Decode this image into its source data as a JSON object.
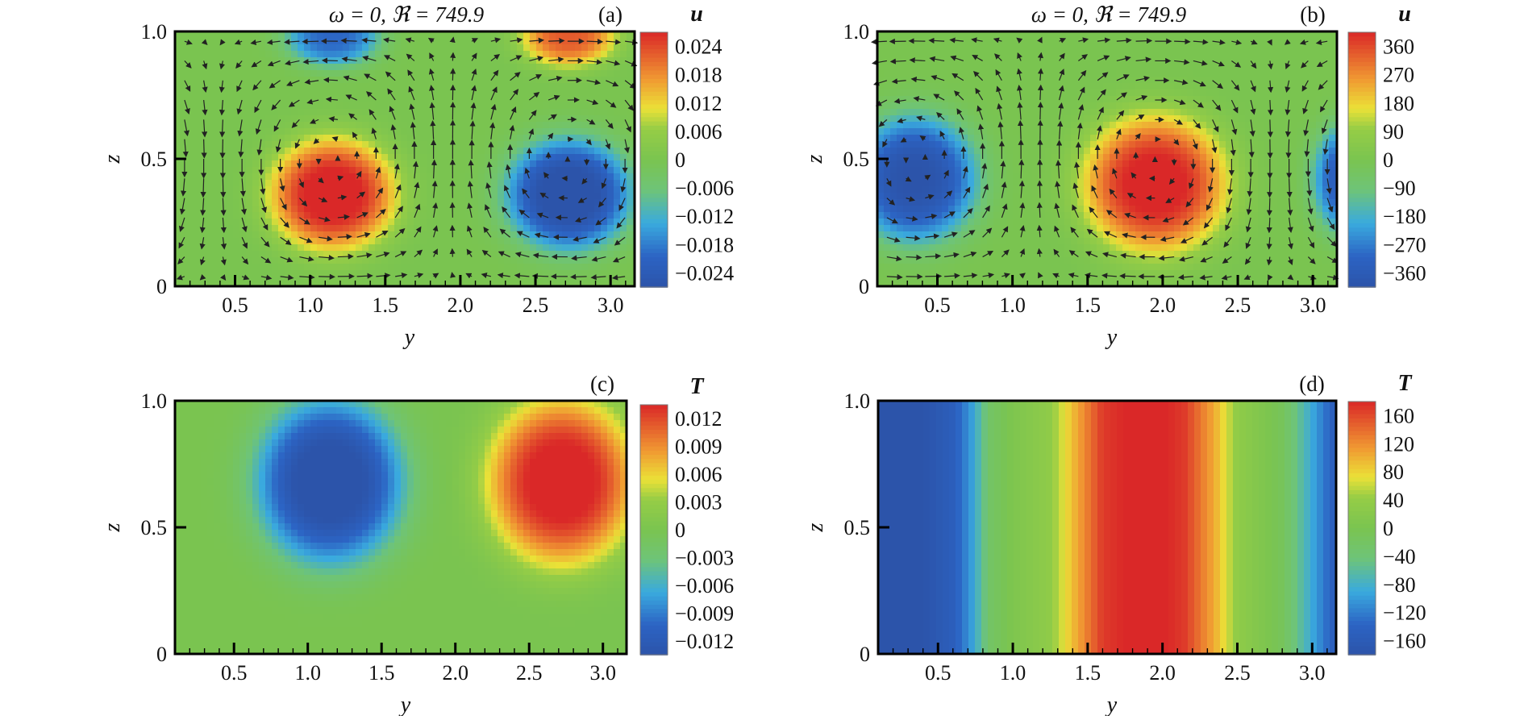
{
  "chart_data": [
    {
      "type": "heatmap",
      "panel": "(a)",
      "title": "ω = 0, ℜ = 749.9",
      "xlabel": "y",
      "ylabel": "z",
      "xlim": [
        0.1,
        3.16
      ],
      "ylim": [
        0,
        1
      ],
      "x_ticks": [
        "0.5",
        "1.0",
        "1.5",
        "2.0",
        "2.5",
        "3.0"
      ],
      "y_ticks": [
        "0",
        "0.5",
        "1.0"
      ],
      "colorbar_label": "u",
      "colorbar_ticks": [
        "0.024",
        "0.018",
        "0.012",
        "0.006",
        "0",
        "−0.006",
        "−0.012",
        "−0.018",
        "−0.024"
      ],
      "field_range": [
        -0.024,
        0.024
      ],
      "vectors": true,
      "features": [
        {
          "y": 1.15,
          "z": 0.36,
          "value": 0.026,
          "ry": 0.42,
          "rz": 0.22
        },
        {
          "y": 2.72,
          "z": 0.36,
          "value": -0.026,
          "ry": 0.42,
          "rz": 0.22
        },
        {
          "y": 1.15,
          "z": 0.98,
          "value": -0.018,
          "ry": 0.32,
          "rz": 0.12
        },
        {
          "y": 2.72,
          "z": 0.98,
          "value": 0.02,
          "ry": 0.32,
          "rz": 0.12
        }
      ]
    },
    {
      "type": "heatmap",
      "panel": "(b)",
      "title": "ω = 0, ℜ = 749.9",
      "xlabel": "y",
      "ylabel": "z",
      "xlim": [
        0.1,
        3.16
      ],
      "ylim": [
        0,
        1
      ],
      "x_ticks": [
        "0.5",
        "1.0",
        "1.5",
        "2.0",
        "2.5",
        "3.0"
      ],
      "y_ticks": [
        "0",
        "0.5",
        "1.0"
      ],
      "colorbar_label": "u",
      "colorbar_ticks": [
        "360",
        "270",
        "180",
        "90",
        "0",
        "−90",
        "−180",
        "−270",
        "−360"
      ],
      "field_range": [
        -360,
        360
      ],
      "vectors": true,
      "features": [
        {
          "y": 0.35,
          "z": 0.42,
          "value": -360,
          "ry": 0.42,
          "rz": 0.25
        },
        {
          "y": 1.95,
          "z": 0.4,
          "value": 380,
          "ry": 0.48,
          "rz": 0.27
        },
        {
          "y": 3.25,
          "z": 0.42,
          "value": -330,
          "ry": 0.25,
          "rz": 0.22
        }
      ]
    },
    {
      "type": "heatmap",
      "panel": "(c)",
      "title": "",
      "xlabel": "y",
      "ylabel": "z",
      "xlim": [
        0.1,
        3.16
      ],
      "ylim": [
        0,
        1
      ],
      "x_ticks": [
        "0.5",
        "1.0",
        "1.5",
        "2.0",
        "2.5",
        "3.0"
      ],
      "y_ticks": [
        "0",
        "0.5",
        "1.0"
      ],
      "colorbar_label": "T",
      "colorbar_ticks": [
        "0.012",
        "0.009",
        "0.006",
        "0.003",
        "0",
        "−0.003",
        "−0.006",
        "−0.009",
        "−0.012"
      ],
      "field_range": [
        -0.012,
        0.012
      ],
      "vectors": false,
      "features": [
        {
          "y": 1.15,
          "z": 0.68,
          "value": -0.013,
          "ry": 0.5,
          "rz": 0.33
        },
        {
          "y": 2.72,
          "z": 0.68,
          "value": 0.013,
          "ry": 0.5,
          "rz": 0.33
        }
      ]
    },
    {
      "type": "heatmap",
      "panel": "(d)",
      "title": "",
      "xlabel": "y",
      "ylabel": "z",
      "xlim": [
        0.1,
        3.16
      ],
      "ylim": [
        0,
        1
      ],
      "x_ticks": [
        "0.5",
        "1.0",
        "1.5",
        "2.0",
        "2.5",
        "3.0"
      ],
      "y_ticks": [
        "0",
        "0.5",
        "1.0"
      ],
      "colorbar_label": "T",
      "colorbar_ticks": [
        "160",
        "120",
        "80",
        "40",
        "0",
        "−40",
        "−80",
        "−120",
        "−160"
      ],
      "field_range": [
        -160,
        160
      ],
      "vectors": false,
      "column_profile": [
        {
          "y": 0.1,
          "value": -165
        },
        {
          "y": 0.4,
          "value": -160
        },
        {
          "y": 0.6,
          "value": -135
        },
        {
          "y": 0.72,
          "value": -90
        },
        {
          "y": 0.85,
          "value": -20
        },
        {
          "y": 1.0,
          "value": 5
        },
        {
          "y": 1.25,
          "value": 30
        },
        {
          "y": 1.45,
          "value": 100
        },
        {
          "y": 1.6,
          "value": 150
        },
        {
          "y": 1.9,
          "value": 170
        },
        {
          "y": 2.15,
          "value": 150
        },
        {
          "y": 2.35,
          "value": 90
        },
        {
          "y": 2.5,
          "value": 30
        },
        {
          "y": 2.8,
          "value": -10
        },
        {
          "y": 3.0,
          "value": -80
        },
        {
          "y": 3.16,
          "value": -140
        }
      ]
    }
  ]
}
